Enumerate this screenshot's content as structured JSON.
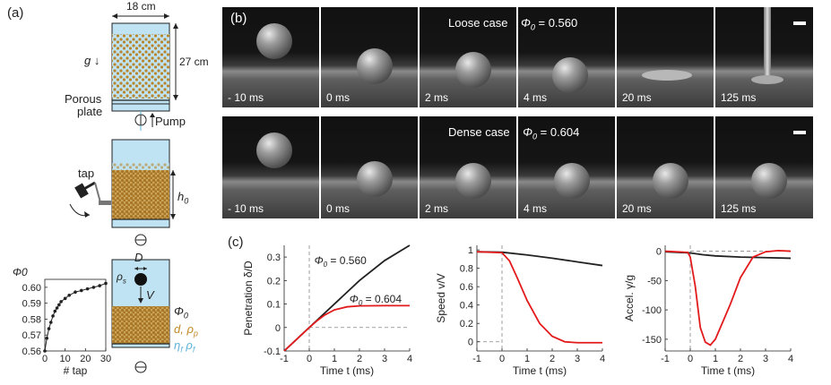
{
  "panel_labels": {
    "a": "(a)",
    "b": "(b)",
    "c": "(c)"
  },
  "panel_a": {
    "width_label": "18 cm",
    "height_label": "27 cm",
    "gravity_label": "g ↓",
    "porous_plate": [
      "Porous",
      "plate"
    ],
    "pump_label": "Pump",
    "tap_label": "tap",
    "h0_label": "h",
    "h0_sub": "0",
    "D_label": "D",
    "rho_s": "ρ",
    "rho_s_sub": "s",
    "V_label": "V",
    "phi0_label": "Φ",
    "phi0_sub": "0",
    "grain_label": "d, ρ",
    "grain_sub": "p",
    "fluid_label": "η",
    "fluid_sub1": "f",
    "fluid_rho": "ρ",
    "fluid_sub2": "f",
    "colors": {
      "grain": "#b8862e",
      "fluid": "#bfe3f2",
      "outline": "#222222",
      "fluid_text": "#5fb4da",
      "grain_text": "#c28a2a"
    }
  },
  "strip_loose": {
    "title": "Loose case",
    "phi": "Φ",
    "phi_sub": "0",
    "phi_value": "= 0.560",
    "frames": [
      "- 10 ms",
      "0 ms",
      "2 ms",
      "4 ms",
      "20 ms",
      "125 ms"
    ]
  },
  "strip_dense": {
    "title": "Dense case",
    "phi": "Φ",
    "phi_sub": "0",
    "phi_value": "=  0.604",
    "frames": [
      "- 10 ms",
      "0 ms",
      "2 ms",
      "4 ms",
      "20 ms",
      "125 ms"
    ]
  },
  "chart_data": [
    {
      "type": "line",
      "xlabel": "# tap",
      "ylabel": "Φ0",
      "xlim": [
        0,
        30
      ],
      "ylim": [
        0.56,
        0.605
      ],
      "xticks": [
        "0",
        "10",
        "20",
        "30"
      ],
      "yticks": [
        "0.56",
        "0.57",
        "0.58",
        "0.59",
        "0.60"
      ],
      "series": [
        {
          "x": [
            0,
            1,
            2,
            3,
            4,
            5,
            6,
            7,
            8,
            10,
            12,
            15,
            18,
            21,
            24,
            27,
            30
          ],
          "y": [
            0.56,
            0.568,
            0.574,
            0.578,
            0.582,
            0.585,
            0.587,
            0.589,
            0.591,
            0.593,
            0.595,
            0.597,
            0.598,
            0.599,
            0.6,
            0.601,
            0.6025
          ]
        }
      ]
    },
    {
      "type": "line",
      "xlabel": "Time t (ms)",
      "ylabel": "Penetration δ/D",
      "xlim": [
        -1,
        4
      ],
      "ylim": [
        -0.1,
        0.35
      ],
      "xticks": [
        "-1",
        "0",
        "1",
        "2",
        "3",
        "4"
      ],
      "yticks": [
        "-0.1",
        "0",
        "0.1",
        "0.2",
        "0.3"
      ],
      "annotations": [
        {
          "text": "Φ",
          "sub": "0",
          "rest": "= 0.560",
          "x": 0.2,
          "y": 0.27
        },
        {
          "text": "Φ",
          "sub": "0",
          "rest": "= 0.604",
          "x": 1.6,
          "y": 0.105
        }
      ],
      "series": [
        {
          "color": "#222222",
          "x": [
            -1,
            0,
            1,
            2,
            3,
            4
          ],
          "y": [
            -0.1,
            0.0,
            0.1,
            0.2,
            0.285,
            0.35
          ]
        },
        {
          "color": "#e31a1c",
          "x": [
            -1,
            0,
            0.3,
            0.6,
            1.0,
            1.5,
            2.0,
            3.0,
            4.0
          ],
          "y": [
            -0.1,
            0.0,
            0.028,
            0.052,
            0.075,
            0.088,
            0.092,
            0.093,
            0.093
          ]
        }
      ]
    },
    {
      "type": "line",
      "xlabel": "Time t (ms)",
      "ylabel": "Speed v/V",
      "xlim": [
        -1,
        4
      ],
      "ylim": [
        -0.1,
        1.05
      ],
      "xticks": [
        "-1",
        "0",
        "1",
        "2",
        "3",
        "4"
      ],
      "yticks": [
        "0",
        "0.2",
        "0.4",
        "0.6",
        "0.8",
        "1"
      ],
      "series": [
        {
          "color": "#222222",
          "x": [
            -1,
            0,
            1,
            2,
            3,
            4
          ],
          "y": [
            0.98,
            0.975,
            0.945,
            0.91,
            0.87,
            0.83
          ]
        },
        {
          "color": "#e31a1c",
          "x": [
            -1,
            0,
            0.3,
            0.6,
            1.0,
            1.5,
            2.0,
            2.5,
            3.0,
            3.5,
            4.0
          ],
          "y": [
            0.98,
            0.97,
            0.88,
            0.7,
            0.45,
            0.2,
            0.06,
            0.0,
            -0.01,
            -0.01,
            -0.01
          ]
        }
      ]
    },
    {
      "type": "line",
      "xlabel": "Time t (ms)",
      "ylabel": "Accel. γ/g",
      "xlim": [
        -1,
        4
      ],
      "ylim": [
        -170,
        10
      ],
      "xticks": [
        "-1",
        "0",
        "1",
        "2",
        "3",
        "4"
      ],
      "yticks": [
        "-150",
        "-100",
        "-50",
        "0"
      ],
      "series": [
        {
          "color": "#222222",
          "x": [
            -1,
            0,
            0.5,
            1,
            2,
            3,
            4
          ],
          "y": [
            -1,
            -3,
            -6,
            -8,
            -10,
            -11,
            -12
          ]
        },
        {
          "color": "#e31a1c",
          "x": [
            -1,
            -0.1,
            0.0,
            0.2,
            0.4,
            0.6,
            0.8,
            1.0,
            1.3,
            1.6,
            2.0,
            2.5,
            3.0,
            3.5,
            4.0
          ],
          "y": [
            0,
            -2,
            -10,
            -60,
            -130,
            -155,
            -160,
            -150,
            -120,
            -90,
            -45,
            -10,
            -1,
            1,
            0
          ]
        }
      ]
    }
  ]
}
